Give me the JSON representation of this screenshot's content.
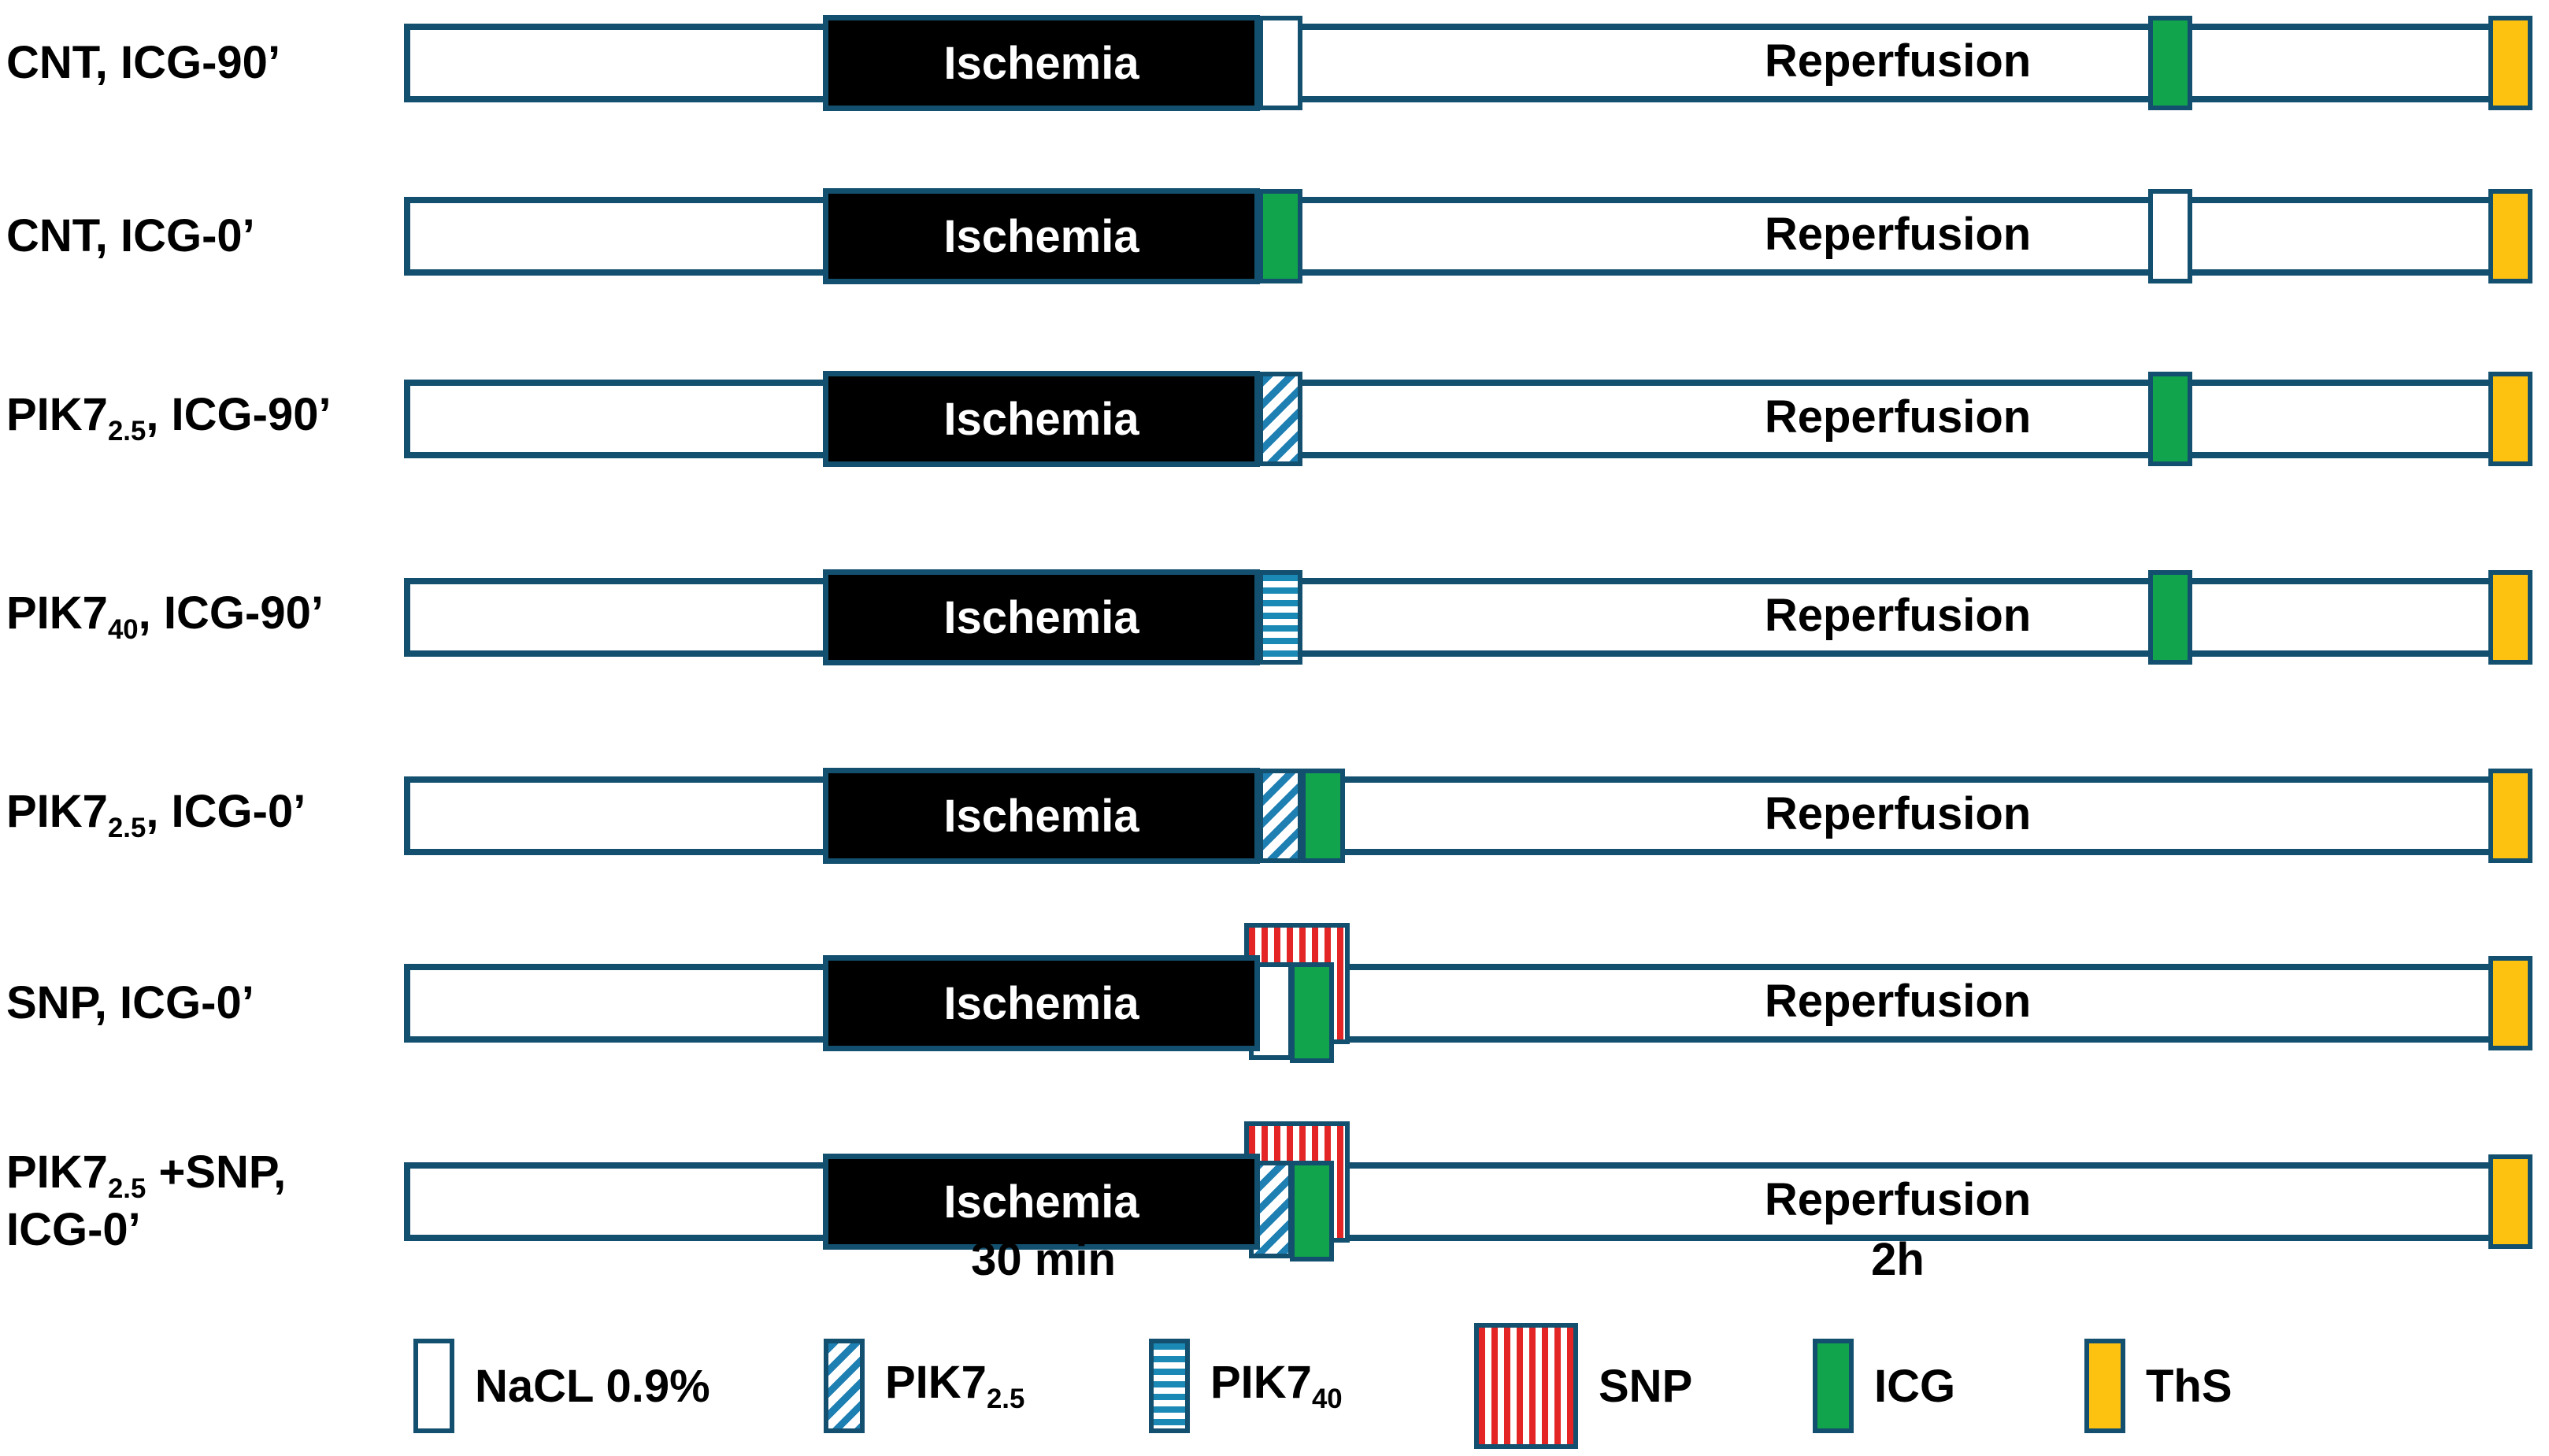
{
  "figure": {
    "bar_labels": {
      "ischemia": "Ischemia",
      "reperfusion": "Reperfusion"
    },
    "axis": {
      "ischemia_duration": "30 min",
      "reperfusion_duration": "2h"
    },
    "rows": [
      {
        "id": "cnt-icg90",
        "label_lines": [
          [
            {
              "t": "CNT, ICG-90’"
            }
          ]
        ],
        "post_markers": [
          "nacl"
        ],
        "mid_marker": "icg",
        "end_marker": "ths",
        "cluster": null
      },
      {
        "id": "cnt-icg0",
        "label_lines": [
          [
            {
              "t": "CNT, ICG-0’"
            }
          ]
        ],
        "post_markers": [
          "icg"
        ],
        "mid_marker": "nacl",
        "end_marker": "ths",
        "cluster": null
      },
      {
        "id": "pik7-2-5-icg90",
        "label_lines": [
          [
            {
              "t": "PIK7"
            },
            {
              "s": "2.5"
            },
            {
              "t": ", ICG-90’"
            }
          ]
        ],
        "post_markers": [
          "pik25"
        ],
        "mid_marker": "icg",
        "end_marker": "ths",
        "cluster": null
      },
      {
        "id": "pik7-40-icg90",
        "label_lines": [
          [
            {
              "t": "PIK7"
            },
            {
              "s": "40"
            },
            {
              "t": ", ICG-90’"
            }
          ]
        ],
        "post_markers": [
          "pik40"
        ],
        "mid_marker": "icg",
        "end_marker": "ths",
        "cluster": null
      },
      {
        "id": "pik7-2-5-icg0",
        "label_lines": [
          [
            {
              "t": "PIK7"
            },
            {
              "s": "2.5"
            },
            {
              "t": ", ICG-0’"
            }
          ]
        ],
        "post_markers": [
          "pik25",
          "icg"
        ],
        "mid_marker": null,
        "end_marker": "ths",
        "cluster": null
      },
      {
        "id": "snp-icg0",
        "label_lines": [
          [
            {
              "t": "SNP, ICG-0’"
            }
          ]
        ],
        "post_markers": [],
        "mid_marker": null,
        "end_marker": "ths",
        "cluster": [
          "nacl",
          "icg"
        ]
      },
      {
        "id": "pik7-2-5-snp-icg0",
        "label_lines": [
          [
            {
              "t": "PIK7"
            },
            {
              "s": "2.5"
            },
            {
              "t": " +SNP,"
            }
          ],
          [
            {
              "t": "ICG-0’"
            }
          ]
        ],
        "post_markers": [],
        "mid_marker": null,
        "end_marker": "ths",
        "cluster": [
          "pik25",
          "icg"
        ]
      }
    ],
    "legend": [
      {
        "type": "nacl",
        "label": [
          {
            "t": "NaCL 0.9%"
          }
        ],
        "big": false
      },
      {
        "type": "pik25",
        "label": [
          {
            "t": "PIK7"
          },
          {
            "s": "2.5"
          }
        ],
        "big": false
      },
      {
        "type": "pik40",
        "label": [
          {
            "t": "PIK7"
          },
          {
            "s": "40"
          }
        ],
        "big": false
      },
      {
        "type": "snp",
        "label": [
          {
            "t": "SNP"
          }
        ],
        "big": true
      },
      {
        "type": "icg",
        "label": [
          {
            "t": "ICG"
          }
        ],
        "big": false
      },
      {
        "type": "ths",
        "label": [
          {
            "t": "ThS"
          }
        ],
        "big": false
      }
    ],
    "colors": {
      "navy": "#134f6e",
      "green": "#12a44c",
      "orange": "#fdc110",
      "red": "#e32526",
      "hatch_blue": "#1e7fb2",
      "stripe_blue": "#1b89b5",
      "ischemia_fill": "#000000",
      "bar_fill": "#ffffff"
    }
  }
}
